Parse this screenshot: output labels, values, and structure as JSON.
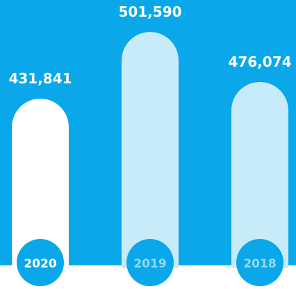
{
  "chart_data": {
    "type": "bar",
    "categories": [
      "2020",
      "2019",
      "2018"
    ],
    "values": [
      431841,
      501590,
      476074
    ],
    "value_labels": [
      "431,841",
      "501,590",
      "476,074"
    ],
    "title": "",
    "xlabel": "",
    "ylabel": "",
    "grid": false,
    "legend": "none"
  },
  "colors": {
    "background": "#0aa8ea",
    "bar_primary": "#ffffff",
    "bar_secondary": "#c8ebf9",
    "label_bubble": "#0aa8ea",
    "label_text_primary": "#ffffff",
    "label_text_secondary": "#93d8f5"
  }
}
